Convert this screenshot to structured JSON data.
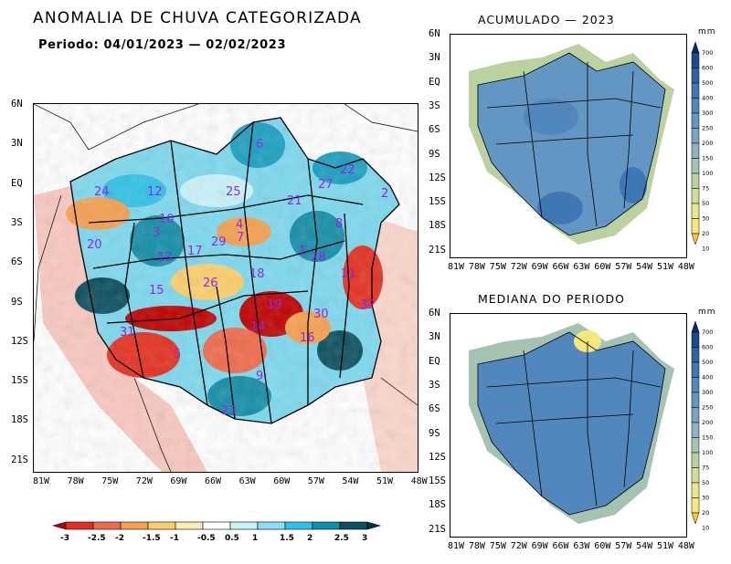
{
  "left_map": {
    "title": "ANOMALIA DE CHUVA CATEGORIZADA",
    "period_label": "Periodo:",
    "period": "04/01/2023 — 02/02/2023",
    "y_ticks": [
      "6N",
      "3N",
      "EQ",
      "3S",
      "6S",
      "9S",
      "12S",
      "15S",
      "18S",
      "21S"
    ],
    "x_ticks": [
      "81W",
      "78W",
      "75W",
      "72W",
      "69W",
      "66W",
      "63W",
      "60W",
      "57W",
      "54W",
      "51W",
      "48W"
    ],
    "basin_ids": [
      "6",
      "22",
      "24",
      "12",
      "25",
      "21",
      "27",
      "2",
      "10",
      "3",
      "17",
      "29",
      "7",
      "20",
      "13",
      "4",
      "28",
      "8",
      "18",
      "15",
      "26",
      "11",
      "19",
      "1",
      "30",
      "32",
      "31",
      "14",
      "5",
      "16",
      "9",
      "23"
    ],
    "colorbar": {
      "labels": [
        "-3",
        "-2.5",
        "-2",
        "-1.5",
        "-1",
        "-0.5",
        "0.5",
        "1",
        "1.5",
        "2",
        "2.5",
        "3"
      ],
      "colors": [
        "#c00000",
        "#e53020",
        "#f06a4a",
        "#f5a050",
        "#fbcf6a",
        "#fbe9b8",
        "#ffffff",
        "#c9f3fb",
        "#86e2f4",
        "#2fc2e8",
        "#138ea8",
        "#0b4f5e",
        "#06303a"
      ]
    }
  },
  "right_top": {
    "title": "ACUMULADO — 2023",
    "unit": "mm",
    "y_ticks": [
      "6N",
      "3N",
      "EQ",
      "3S",
      "6S",
      "9S",
      "12S",
      "15S",
      "18S",
      "21S"
    ],
    "x_ticks": [
      "81W",
      "78W",
      "75W",
      "72W",
      "69W",
      "66W",
      "63W",
      "60W",
      "57W",
      "54W",
      "51W",
      "48W"
    ]
  },
  "right_bottom": {
    "title": "MEDIANA DO PERIODO",
    "unit": "mm",
    "y_ticks": [
      "6N",
      "3N",
      "EQ",
      "3S",
      "6S",
      "9S",
      "12S",
      "15S",
      "18S",
      "21S"
    ],
    "x_ticks": [
      "81W",
      "78W",
      "75W",
      "72W",
      "69W",
      "66W",
      "63W",
      "60W",
      "57W",
      "54W",
      "51W",
      "48W"
    ]
  },
  "colorbar_mm": {
    "labels": [
      "700",
      "600",
      "500",
      "400",
      "300",
      "250",
      "200",
      "150",
      "100",
      "75",
      "50",
      "30",
      "20",
      "10"
    ],
    "colors": [
      "#0b2a6b",
      "#1d4a8f",
      "#2f63a8",
      "#3f77b5",
      "#5187bd",
      "#6396c2",
      "#78a4c3",
      "#8fb3c0",
      "#a6c2b0",
      "#bcd1a0",
      "#d2de95",
      "#e6e88a",
      "#f6e77a",
      "#f9c23f"
    ]
  }
}
